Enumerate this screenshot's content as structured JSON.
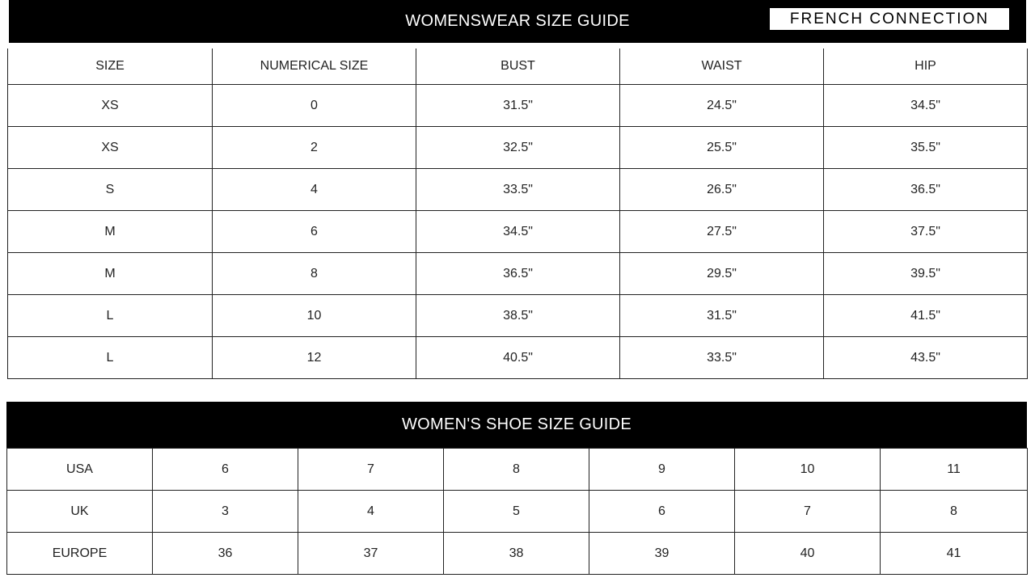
{
  "header": {
    "title": "WOMENSWEAR SIZE GUIDE",
    "logo": "FRENCH CONNECTION"
  },
  "size_table": {
    "columns": [
      "SIZE",
      "NUMERICAL SIZE",
      "BUST",
      "WAIST",
      "HIP"
    ],
    "rows": [
      [
        "XS",
        "0",
        "31.5\"",
        "24.5\"",
        "34.5\""
      ],
      [
        "XS",
        "2",
        "32.5\"",
        "25.5\"",
        "35.5\""
      ],
      [
        "S",
        "4",
        "33.5\"",
        "26.5\"",
        "36.5\""
      ],
      [
        "M",
        "6",
        "34.5\"",
        "27.5\"",
        "37.5\""
      ],
      [
        "M",
        "8",
        "36.5\"",
        "29.5\"",
        "39.5\""
      ],
      [
        "L",
        "10",
        "38.5\"",
        "31.5\"",
        "41.5\""
      ],
      [
        "L",
        "12",
        "40.5\"",
        "33.5\"",
        "43.5\""
      ]
    ]
  },
  "shoe_table": {
    "title": "WOMEN'S SHOE SIZE GUIDE",
    "rows": [
      [
        "USA",
        "6",
        "7",
        "8",
        "9",
        "10",
        "11"
      ],
      [
        "UK",
        "3",
        "4",
        "5",
        "6",
        "7",
        "8"
      ],
      [
        "EUROPE",
        "36",
        "37",
        "38",
        "39",
        "40",
        "41"
      ]
    ]
  }
}
